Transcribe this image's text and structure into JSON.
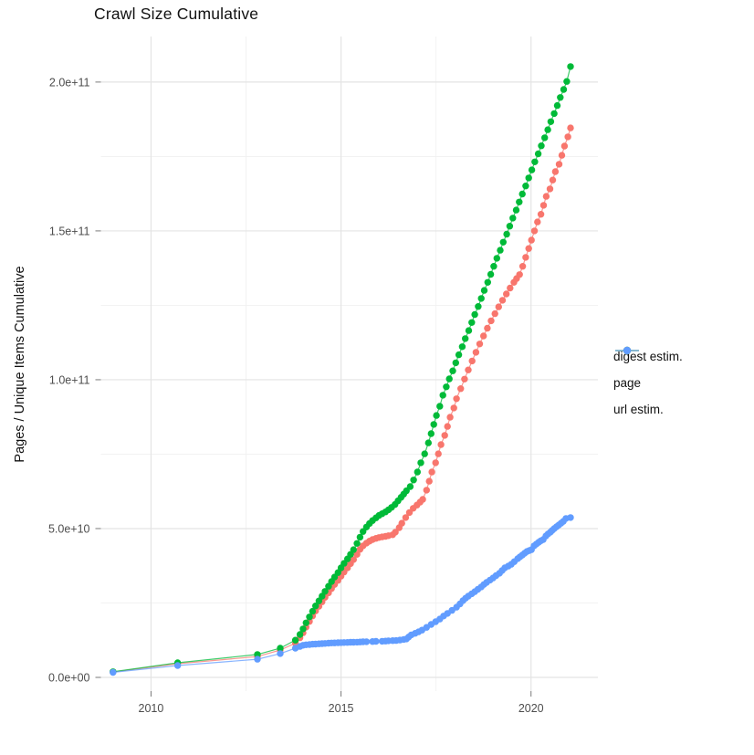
{
  "chart_data": {
    "type": "line",
    "markers": true,
    "title": "Crawl Size Cumulative",
    "xlabel": "",
    "ylabel": "Pages / Unique Items Cumulative",
    "units": "y values in billions (1e9) of pages / unique items",
    "grid": true,
    "legend_position": "right",
    "xlim": [
      2008.68,
      2021.76
    ],
    "ylim_billions": [
      -4.6,
      215.3
    ],
    "x_ticks": [
      2010,
      2015,
      2020
    ],
    "x_tick_labels": [
      "2010",
      "2015",
      "2020"
    ],
    "x_minor_ticks": [
      2012.5,
      2017.5
    ],
    "y_ticks_billions": [
      0,
      50,
      100,
      150,
      200
    ],
    "y_tick_labels": [
      "0.0e+00",
      "5.0e+10",
      "1.0e+11",
      "1.5e+11",
      "2.0e+11"
    ],
    "y_minor_ticks_billions": [
      25,
      75,
      125,
      175
    ],
    "series": [
      {
        "name": "digest estim.",
        "color": "#F8766D",
        "points": [
          [
            2009.0,
            1.8
          ],
          [
            2010.7,
            4.6
          ],
          [
            2012.8,
            7.0
          ],
          [
            2013.4,
            9.2
          ],
          [
            2013.8,
            11.5
          ],
          [
            2013.92,
            13.3
          ],
          [
            2014.0,
            15.0
          ],
          [
            2014.08,
            16.9
          ],
          [
            2014.17,
            18.8
          ],
          [
            2014.25,
            20.6
          ],
          [
            2014.33,
            22.3
          ],
          [
            2014.42,
            23.9
          ],
          [
            2014.5,
            25.4
          ],
          [
            2014.58,
            26.9
          ],
          [
            2014.67,
            28.4
          ],
          [
            2014.75,
            29.8
          ],
          [
            2014.83,
            31.2
          ],
          [
            2014.92,
            32.6
          ],
          [
            2015.0,
            34.0
          ],
          [
            2015.08,
            35.4
          ],
          [
            2015.17,
            36.8
          ],
          [
            2015.25,
            38.2
          ],
          [
            2015.33,
            39.6
          ],
          [
            2015.42,
            41.3
          ],
          [
            2015.5,
            43.0
          ],
          [
            2015.58,
            44.2
          ],
          [
            2015.67,
            45.1
          ],
          [
            2015.75,
            45.8
          ],
          [
            2015.83,
            46.3
          ],
          [
            2015.92,
            46.7
          ],
          [
            2016.0,
            47.0
          ],
          [
            2016.08,
            47.2
          ],
          [
            2016.17,
            47.4
          ],
          [
            2016.25,
            47.6
          ],
          [
            2016.36,
            47.9
          ],
          [
            2016.43,
            48.8
          ],
          [
            2016.53,
            50.3
          ],
          [
            2016.6,
            51.8
          ],
          [
            2016.7,
            53.7
          ],
          [
            2016.8,
            55.4
          ],
          [
            2016.9,
            56.8
          ],
          [
            2017.0,
            57.9
          ],
          [
            2017.08,
            58.9
          ],
          [
            2017.15,
            59.8
          ],
          [
            2017.25,
            62.9
          ],
          [
            2017.32,
            65.9
          ],
          [
            2017.39,
            69.0
          ],
          [
            2017.49,
            72.1
          ],
          [
            2017.56,
            75.1
          ],
          [
            2017.63,
            78.2
          ],
          [
            2017.73,
            81.3
          ],
          [
            2017.8,
            84.3
          ],
          [
            2017.87,
            87.4
          ],
          [
            2017.97,
            90.5
          ],
          [
            2018.04,
            93.6
          ],
          [
            2018.15,
            97.0
          ],
          [
            2018.25,
            100.2
          ],
          [
            2018.35,
            103.3
          ],
          [
            2018.45,
            106.3
          ],
          [
            2018.55,
            109.2
          ],
          [
            2018.65,
            112.0
          ],
          [
            2018.75,
            114.7
          ],
          [
            2018.85,
            117.3
          ],
          [
            2018.95,
            119.8
          ],
          [
            2019.05,
            122.2
          ],
          [
            2019.15,
            124.5
          ],
          [
            2019.25,
            126.7
          ],
          [
            2019.35,
            128.8
          ],
          [
            2019.45,
            130.8
          ],
          [
            2019.55,
            132.7
          ],
          [
            2019.62,
            134.0
          ],
          [
            2019.7,
            135.3
          ],
          [
            2019.78,
            138.1
          ],
          [
            2019.86,
            141.1
          ],
          [
            2019.94,
            144.1
          ],
          [
            2020.01,
            146.9
          ],
          [
            2020.09,
            150.0
          ],
          [
            2020.17,
            153.0
          ],
          [
            2020.26,
            155.6
          ],
          [
            2020.33,
            158.6
          ],
          [
            2020.4,
            161.6
          ],
          [
            2020.5,
            164.1
          ],
          [
            2020.57,
            167.1
          ],
          [
            2020.64,
            169.9
          ],
          [
            2020.74,
            172.4
          ],
          [
            2020.81,
            175.4
          ],
          [
            2020.88,
            178.5
          ],
          [
            2020.97,
            181.6
          ],
          [
            2021.04,
            184.6
          ]
        ]
      },
      {
        "name": "page",
        "color": "#00BA38",
        "points": [
          [
            2009.0,
            1.9
          ],
          [
            2010.7,
            4.9
          ],
          [
            2012.8,
            7.7
          ],
          [
            2013.4,
            9.8
          ],
          [
            2013.8,
            12.5
          ],
          [
            2013.92,
            14.4
          ],
          [
            2014.0,
            16.3
          ],
          [
            2014.08,
            18.3
          ],
          [
            2014.17,
            20.3
          ],
          [
            2014.25,
            22.2
          ],
          [
            2014.33,
            24.0
          ],
          [
            2014.42,
            25.7
          ],
          [
            2014.5,
            27.3
          ],
          [
            2014.58,
            28.9
          ],
          [
            2014.67,
            30.6
          ],
          [
            2014.75,
            32.2
          ],
          [
            2014.83,
            33.7
          ],
          [
            2014.92,
            35.2
          ],
          [
            2015.0,
            36.8
          ],
          [
            2015.08,
            38.3
          ],
          [
            2015.17,
            39.8
          ],
          [
            2015.25,
            41.3
          ],
          [
            2015.33,
            42.9
          ],
          [
            2015.42,
            45.0
          ],
          [
            2015.5,
            47.1
          ],
          [
            2015.58,
            49.0
          ],
          [
            2015.67,
            50.5
          ],
          [
            2015.75,
            51.7
          ],
          [
            2015.83,
            52.7
          ],
          [
            2015.92,
            53.6
          ],
          [
            2016.0,
            54.4
          ],
          [
            2016.08,
            55.0
          ],
          [
            2016.17,
            55.6
          ],
          [
            2016.25,
            56.3
          ],
          [
            2016.33,
            57.1
          ],
          [
            2016.42,
            58.1
          ],
          [
            2016.5,
            59.3
          ],
          [
            2016.58,
            60.5
          ],
          [
            2016.65,
            61.6
          ],
          [
            2016.72,
            62.7
          ],
          [
            2016.82,
            64.1
          ],
          [
            2016.91,
            66.3
          ],
          [
            2017.01,
            69.0
          ],
          [
            2017.1,
            72.1
          ],
          [
            2017.2,
            75.1
          ],
          [
            2017.3,
            78.8
          ],
          [
            2017.37,
            81.9
          ],
          [
            2017.44,
            85.0
          ],
          [
            2017.51,
            88.0
          ],
          [
            2017.6,
            91.1
          ],
          [
            2017.68,
            94.8
          ],
          [
            2017.77,
            97.6
          ],
          [
            2017.85,
            100.3
          ],
          [
            2017.94,
            103.0
          ],
          [
            2018.02,
            105.7
          ],
          [
            2018.1,
            108.4
          ],
          [
            2018.19,
            111.1
          ],
          [
            2018.27,
            113.8
          ],
          [
            2018.36,
            116.5
          ],
          [
            2018.44,
            119.2
          ],
          [
            2018.52,
            121.9
          ],
          [
            2018.61,
            124.6
          ],
          [
            2018.69,
            127.3
          ],
          [
            2018.77,
            130.0
          ],
          [
            2018.86,
            132.7
          ],
          [
            2018.94,
            135.4
          ],
          [
            2019.02,
            138.1
          ],
          [
            2019.1,
            140.8
          ],
          [
            2019.19,
            143.5
          ],
          [
            2019.27,
            146.2
          ],
          [
            2019.36,
            148.9
          ],
          [
            2019.44,
            151.6
          ],
          [
            2019.52,
            154.3
          ],
          [
            2019.61,
            157.0
          ],
          [
            2019.69,
            159.7
          ],
          [
            2019.77,
            162.4
          ],
          [
            2019.86,
            165.1
          ],
          [
            2019.94,
            167.8
          ],
          [
            2020.02,
            170.5
          ],
          [
            2020.1,
            173.2
          ],
          [
            2020.19,
            175.9
          ],
          [
            2020.27,
            178.6
          ],
          [
            2020.36,
            181.3
          ],
          [
            2020.44,
            184.0
          ],
          [
            2020.52,
            186.7
          ],
          [
            2020.61,
            189.4
          ],
          [
            2020.69,
            192.1
          ],
          [
            2020.77,
            194.8
          ],
          [
            2020.86,
            197.5
          ],
          [
            2020.94,
            200.2
          ],
          [
            2021.04,
            205.2
          ]
        ]
      },
      {
        "name": "url estim.",
        "color": "#619CFF",
        "points": [
          [
            2009.0,
            1.7
          ],
          [
            2010.7,
            4.0
          ],
          [
            2012.8,
            6.1
          ],
          [
            2013.4,
            8.0
          ],
          [
            2013.8,
            9.8
          ],
          [
            2013.92,
            10.4
          ],
          [
            2014.0,
            10.8
          ],
          [
            2014.08,
            10.95
          ],
          [
            2014.17,
            11.05
          ],
          [
            2014.25,
            11.15
          ],
          [
            2014.33,
            11.2
          ],
          [
            2014.42,
            11.3
          ],
          [
            2014.5,
            11.35
          ],
          [
            2014.58,
            11.4
          ],
          [
            2014.67,
            11.5
          ],
          [
            2014.75,
            11.55
          ],
          [
            2014.83,
            11.6
          ],
          [
            2014.92,
            11.65
          ],
          [
            2015.0,
            11.7
          ],
          [
            2015.08,
            11.72
          ],
          [
            2015.17,
            11.75
          ],
          [
            2015.25,
            11.8
          ],
          [
            2015.33,
            11.82
          ],
          [
            2015.42,
            11.85
          ],
          [
            2015.5,
            11.9
          ],
          [
            2015.58,
            11.95
          ],
          [
            2015.67,
            12.0
          ],
          [
            2015.83,
            12.05
          ],
          [
            2015.92,
            12.1
          ],
          [
            2016.08,
            12.15
          ],
          [
            2016.17,
            12.2
          ],
          [
            2016.25,
            12.3
          ],
          [
            2016.36,
            12.35
          ],
          [
            2016.45,
            12.4
          ],
          [
            2016.55,
            12.55
          ],
          [
            2016.65,
            12.75
          ],
          [
            2016.72,
            12.9
          ],
          [
            2016.78,
            13.6
          ],
          [
            2016.85,
            14.3
          ],
          [
            2016.95,
            14.8
          ],
          [
            2017.04,
            15.3
          ],
          [
            2017.13,
            15.9
          ],
          [
            2017.25,
            16.8
          ],
          [
            2017.37,
            17.8
          ],
          [
            2017.49,
            18.7
          ],
          [
            2017.6,
            19.6
          ],
          [
            2017.7,
            20.6
          ],
          [
            2017.8,
            21.5
          ],
          [
            2017.92,
            22.5
          ],
          [
            2018.04,
            23.6
          ],
          [
            2018.13,
            24.7
          ],
          [
            2018.21,
            25.8
          ],
          [
            2018.28,
            26.6
          ],
          [
            2018.35,
            27.3
          ],
          [
            2018.44,
            28.1
          ],
          [
            2018.52,
            28.8
          ],
          [
            2018.6,
            29.6
          ],
          [
            2018.69,
            30.4
          ],
          [
            2018.76,
            31.2
          ],
          [
            2018.83,
            31.9
          ],
          [
            2018.92,
            32.7
          ],
          [
            2019.0,
            33.4
          ],
          [
            2019.08,
            34.2
          ],
          [
            2019.17,
            35.0
          ],
          [
            2019.24,
            35.9
          ],
          [
            2019.31,
            36.8
          ],
          [
            2019.4,
            37.4
          ],
          [
            2019.48,
            38.0
          ],
          [
            2019.56,
            38.9
          ],
          [
            2019.65,
            39.9
          ],
          [
            2019.71,
            40.5
          ],
          [
            2019.77,
            41.1
          ],
          [
            2019.83,
            41.7
          ],
          [
            2019.89,
            42.3
          ],
          [
            2019.95,
            42.6
          ],
          [
            2020.01,
            42.9
          ],
          [
            2020.08,
            44.2
          ],
          [
            2020.14,
            44.8
          ],
          [
            2020.2,
            45.4
          ],
          [
            2020.26,
            45.9
          ],
          [
            2020.32,
            46.3
          ],
          [
            2020.39,
            47.5
          ],
          [
            2020.45,
            48.2
          ],
          [
            2020.51,
            48.8
          ],
          [
            2020.56,
            49.4
          ],
          [
            2020.61,
            50.0
          ],
          [
            2020.67,
            50.6
          ],
          [
            2020.73,
            51.2
          ],
          [
            2020.79,
            51.8
          ],
          [
            2020.85,
            52.4
          ],
          [
            2020.92,
            53.4
          ],
          [
            2021.04,
            53.7
          ]
        ]
      }
    ]
  }
}
